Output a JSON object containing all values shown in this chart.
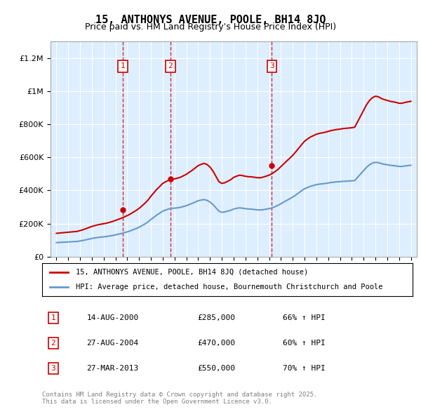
{
  "title": "15, ANTHONYS AVENUE, POOLE, BH14 8JQ",
  "subtitle": "Price paid vs. HM Land Registry's House Price Index (HPI)",
  "hpi_line_color": "#6699cc",
  "price_line_color": "#cc0000",
  "transaction_color": "#cc0000",
  "vline_color": "#cc0000",
  "box_color": "#cc0000",
  "background_color": "#ddeeff",
  "ylim": [
    0,
    1300000
  ],
  "yticks": [
    0,
    200000,
    400000,
    600000,
    800000,
    1000000,
    1200000
  ],
  "ytick_labels": [
    "£0",
    "£200K",
    "£400K",
    "£600K",
    "£800K",
    "£1M",
    "£1.2M"
  ],
  "transactions": [
    {
      "date_num": 2000.62,
      "price": 285000,
      "label": "1"
    },
    {
      "date_num": 2004.65,
      "price": 470000,
      "label": "2"
    },
    {
      "date_num": 2013.23,
      "price": 550000,
      "label": "3"
    }
  ],
  "legend_entries": [
    {
      "label": "15, ANTHONYS AVENUE, POOLE, BH14 8JQ (detached house)",
      "color": "#cc0000"
    },
    {
      "label": "HPI: Average price, detached house, Bournemouth Christchurch and Poole",
      "color": "#6699cc"
    }
  ],
  "table_rows": [
    {
      "num": "1",
      "date": "14-AUG-2000",
      "price": "£285,000",
      "pct": "66% ↑ HPI"
    },
    {
      "num": "2",
      "date": "27-AUG-2004",
      "price": "£470,000",
      "pct": "60% ↑ HPI"
    },
    {
      "num": "3",
      "date": "27-MAR-2013",
      "price": "£550,000",
      "pct": "70% ↑ HPI"
    }
  ],
  "footnote": "Contains HM Land Registry data © Crown copyright and database right 2025.\nThis data is licensed under the Open Government Licence v3.0.",
  "xlim": [
    1994.5,
    2025.5
  ],
  "xticks": [
    1995,
    1996,
    1997,
    1998,
    1999,
    2000,
    2001,
    2002,
    2003,
    2004,
    2005,
    2006,
    2007,
    2008,
    2009,
    2010,
    2011,
    2012,
    2013,
    2014,
    2015,
    2016,
    2017,
    2018,
    2019,
    2020,
    2021,
    2022,
    2023,
    2024,
    2025
  ]
}
